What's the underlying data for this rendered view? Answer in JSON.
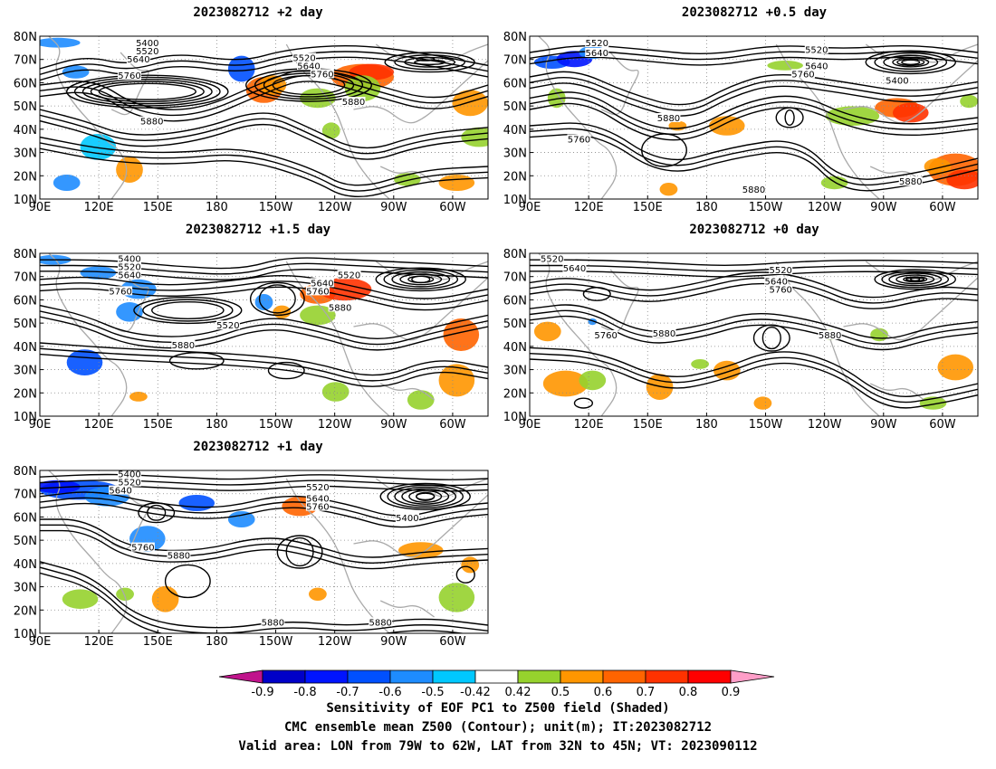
{
  "panels": [
    {
      "id": "p2",
      "title": "2023082712 +2 day"
    },
    {
      "id": "p05",
      "title": "2023082712 +0.5 day"
    },
    {
      "id": "p15",
      "title": "2023082712 +1.5 day"
    },
    {
      "id": "p0",
      "title": "2023082712 +0 day"
    },
    {
      "id": "p1",
      "title": "2023082712 +1 day"
    }
  ],
  "lat_labels": [
    "80N",
    "70N",
    "60N",
    "50N",
    "40N",
    "30N",
    "20N",
    "10N"
  ],
  "lon_labels": [
    "90E",
    "120E",
    "150E",
    "180",
    "150W",
    "120W",
    "90W",
    "60W"
  ],
  "colorbar": {
    "ticks": [
      "-0.9",
      "-0.8",
      "-0.7",
      "-0.6",
      "-0.5",
      "-0.42",
      "0.42",
      "0.5",
      "0.6",
      "0.7",
      "0.8",
      "0.9"
    ],
    "colors": [
      "#c0148c",
      "#0000c8",
      "#0014ff",
      "#0050ff",
      "#1e8cff",
      "#00c8ff",
      "#ffffff",
      "#96d22d",
      "#ff9600",
      "#ff6400",
      "#ff3200",
      "#ff0000",
      "#ff9ec8"
    ]
  },
  "captions": {
    "line1": "Sensitivity of EOF PC1 to Z500 field (Shaded)",
    "line2": "CMC ensemble mean Z500 (Contour); unit(m); IT:2023082712",
    "line3": "Valid area: LON from 79W to 62W, LAT from 32N to 45N; VT: 2023090112"
  },
  "contour_labels": {
    "p2": [
      "5400",
      "5520",
      "5640",
      "5760",
      "5520",
      "5640",
      "5760",
      "5880",
      "5880"
    ],
    "p05": [
      "5520",
      "5640",
      "5520",
      "5640",
      "5760",
      "5400",
      "5760",
      "5880",
      "5880",
      "5880"
    ],
    "p15": [
      "5400",
      "5520",
      "5640",
      "5760",
      "5520",
      "5640",
      "5760",
      "5880",
      "5520",
      "5880"
    ],
    "p0": [
      "5520",
      "5640",
      "5520",
      "5640",
      "5760",
      "5760",
      "5880",
      "5880"
    ],
    "p1": [
      "5400",
      "5520",
      "5640",
      "5760",
      "5880",
      "5520",
      "5640",
      "5760",
      "5400",
      "5880",
      "5880"
    ]
  },
  "colors": {
    "contour": "#000000",
    "coast": "#aaaaaa",
    "grid": "#888888"
  }
}
